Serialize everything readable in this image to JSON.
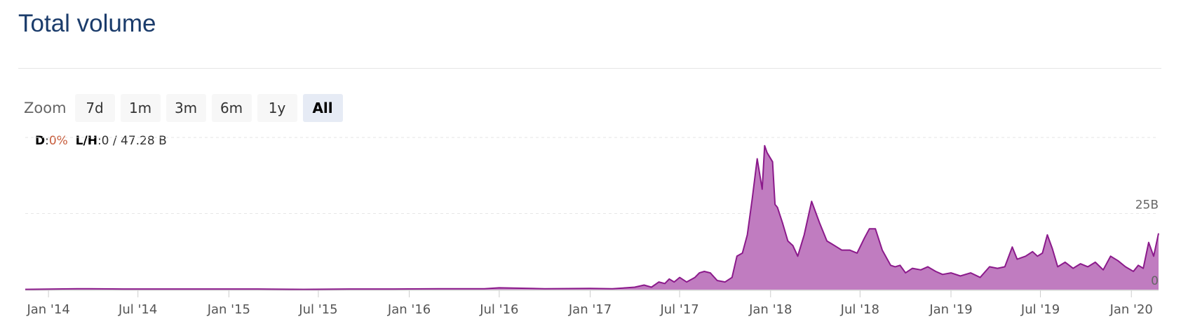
{
  "title": "Total volume",
  "zoom": {
    "label": "Zoom",
    "buttons": [
      {
        "label": "7d",
        "active": false
      },
      {
        "label": "1m",
        "active": false
      },
      {
        "label": "3m",
        "active": false
      },
      {
        "label": "6m",
        "active": false
      },
      {
        "label": "1y",
        "active": false
      },
      {
        "label": "All",
        "active": true
      }
    ]
  },
  "stats": {
    "d_label": "D",
    "d_sep": ":",
    "d_value": "0%",
    "lh_label": "L/H",
    "lh_sep": ":",
    "lh_value": "0 / 47.28 B"
  },
  "colors": {
    "line": "#8b1a8b",
    "fill": "#c07cc0"
  },
  "chart_data": {
    "type": "area",
    "ylabel_ticks": [
      "25B",
      "0"
    ],
    "ylim": [
      0,
      50
    ],
    "unit": "B",
    "x_tick_labels": [
      "Jan '14",
      "Jul '14",
      "Jan '15",
      "Jul '15",
      "Jan '16",
      "Jul '16",
      "Jan '17",
      "Jul '17",
      "Jan '18",
      "Jul '18",
      "Jan '19",
      "Jul '19",
      "Jan '20"
    ],
    "x_tick_dates": [
      "2014-01-01",
      "2014-07-01",
      "2015-01-01",
      "2015-07-01",
      "2016-01-01",
      "2016-07-01",
      "2017-01-01",
      "2017-07-01",
      "2018-01-01",
      "2018-07-01",
      "2019-01-01",
      "2019-07-01",
      "2020-01-01"
    ],
    "x_range": [
      "2013-11-15",
      "2020-02-25"
    ],
    "series": [
      {
        "x": [
          "2013-11-15",
          "2014-03-01",
          "2014-06-01",
          "2014-09-01",
          "2014-12-01",
          "2015-03-01",
          "2015-06-01",
          "2015-09-01",
          "2015-12-01",
          "2016-03-01",
          "2016-06-01",
          "2016-07-01",
          "2016-10-01",
          "2017-01-01",
          "2017-02-15",
          "2017-03-15",
          "2017-04-01",
          "2017-04-20",
          "2017-05-05",
          "2017-05-20",
          "2017-06-01",
          "2017-06-10",
          "2017-06-20",
          "2017-07-01",
          "2017-07-15",
          "2017-08-01",
          "2017-08-10",
          "2017-08-20",
          "2017-09-01",
          "2017-09-15",
          "2017-10-01",
          "2017-10-15",
          "2017-10-25",
          "2017-11-05",
          "2017-11-15",
          "2017-11-25",
          "2017-12-05",
          "2017-12-15",
          "2017-12-20",
          "2017-12-25",
          "2018-01-05",
          "2018-01-10",
          "2018-01-15",
          "2018-01-25",
          "2018-02-05",
          "2018-02-15",
          "2018-02-25",
          "2018-03-10",
          "2018-03-25",
          "2018-04-10",
          "2018-04-25",
          "2018-05-05",
          "2018-05-15",
          "2018-05-25",
          "2018-06-10",
          "2018-06-25",
          "2018-07-10",
          "2018-07-20",
          "2018-08-01",
          "2018-08-15",
          "2018-09-01",
          "2018-09-10",
          "2018-09-20",
          "2018-10-01",
          "2018-10-15",
          "2018-11-01",
          "2018-11-15",
          "2018-12-01",
          "2018-12-15",
          "2019-01-01",
          "2019-01-20",
          "2019-02-10",
          "2019-03-01",
          "2019-03-20",
          "2019-04-05",
          "2019-04-20",
          "2019-05-05",
          "2019-05-15",
          "2019-06-01",
          "2019-06-15",
          "2019-06-25",
          "2019-07-05",
          "2019-07-15",
          "2019-07-25",
          "2019-08-05",
          "2019-08-20",
          "2019-09-05",
          "2019-09-20",
          "2019-10-05",
          "2019-10-20",
          "2019-11-05",
          "2019-11-20",
          "2019-12-05",
          "2019-12-20",
          "2020-01-05",
          "2020-01-15",
          "2020-01-25",
          "2020-02-05",
          "2020-02-15",
          "2020-02-25"
        ],
        "values": [
          0.1,
          0.3,
          0.2,
          0.2,
          0.2,
          0.2,
          0.1,
          0.2,
          0.2,
          0.3,
          0.3,
          0.6,
          0.3,
          0.4,
          0.3,
          0.6,
          0.8,
          1.5,
          0.8,
          2.5,
          2.0,
          3.5,
          2.5,
          4.0,
          2.5,
          4.0,
          5.5,
          6.0,
          5.5,
          3.0,
          2.5,
          4.0,
          11.0,
          12.0,
          18.0,
          30.0,
          43.0,
          33.0,
          47.3,
          45.0,
          42.0,
          28.0,
          27.0,
          22.0,
          16.0,
          14.5,
          11.0,
          18.0,
          29.0,
          22.0,
          16.0,
          15.0,
          14.0,
          13.0,
          13.0,
          12.0,
          17.0,
          20.0,
          20.0,
          13.0,
          8.0,
          7.5,
          8.0,
          5.5,
          7.0,
          6.5,
          7.5,
          6.0,
          5.0,
          5.5,
          4.5,
          5.5,
          4.0,
          7.5,
          7.0,
          7.5,
          14.0,
          10.0,
          11.0,
          12.5,
          11.0,
          12.0,
          18.0,
          13.5,
          7.5,
          9.0,
          7.0,
          8.5,
          7.5,
          9.0,
          6.5,
          11.0,
          9.5,
          7.5,
          6.0,
          8.0,
          7.0,
          15.5,
          11.0,
          18.5
        ]
      }
    ]
  }
}
